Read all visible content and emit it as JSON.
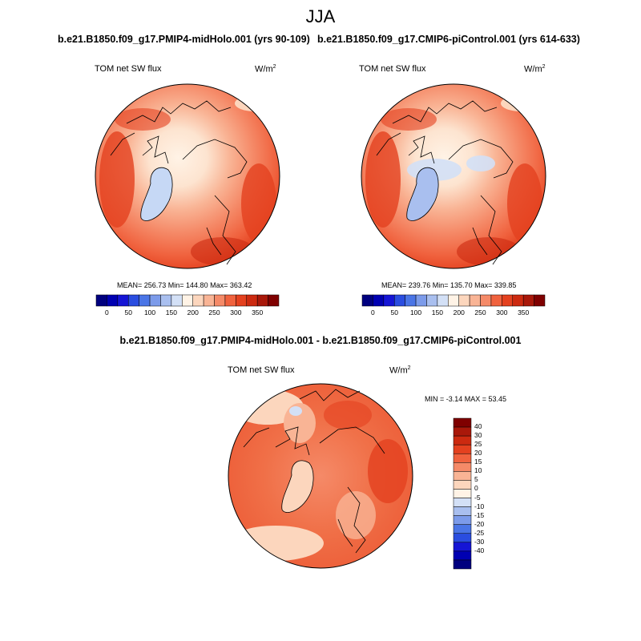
{
  "season": "JJA",
  "panel_left": {
    "title": "b.e21.B1850.f09_g17.PMIP4-midHolo.001 (yrs 90-109)",
    "variable": "TOM net SW flux",
    "units": "W/m",
    "units_sup": "2",
    "stats": "MEAN= 256.73  Min= 144.80  Max= 363.42"
  },
  "panel_right": {
    "title": "b.e21.B1850.f09_g17.CMIP6-piControl.001 (yrs 614-633)",
    "variable": "TOM net SW flux",
    "units": "W/m",
    "units_sup": "2",
    "stats": "MEAN= 239.76  Min= 135.70  Max= 339.85"
  },
  "panel_diff": {
    "title": "b.e21.B1850.f09_g17.PMIP4-midHolo.001 - b.e21.B1850.f09_g17.CMIP6-piControl.001",
    "variable": "TOM net SW flux",
    "units": "W/m",
    "units_sup": "2",
    "stats": "MIN =  -3.14 MAX =  53.45"
  },
  "abs_colorbar": {
    "colors": [
      "#00007f",
      "#0000b2",
      "#1515d5",
      "#2a4de0",
      "#4a75e6",
      "#7c9bea",
      "#a9bfef",
      "#d3e0f6",
      "#fff3e6",
      "#fcd6bd",
      "#f9b495",
      "#f58a68",
      "#f0623e",
      "#e4411f",
      "#cc2a10",
      "#a9180a",
      "#7f0000"
    ],
    "labels": [
      "0",
      "50",
      "100",
      "150",
      "200",
      "250",
      "300",
      "350"
    ]
  },
  "diff_colorbar": {
    "colors": [
      "#7f0000",
      "#a9180a",
      "#cc2a10",
      "#e4411f",
      "#f0623e",
      "#f58a68",
      "#f9b495",
      "#fcd6bd",
      "#fff3e6",
      "#d3e0f6",
      "#a9bfef",
      "#7c9bea",
      "#4a75e6",
      "#2a4de0",
      "#1515d5",
      "#0000b2",
      "#00007f"
    ],
    "labels": [
      "40",
      "30",
      "25",
      "20",
      "15",
      "10",
      "5",
      "0",
      "-5",
      "-10",
      "-15",
      "-20",
      "-25",
      "-30",
      "-40"
    ]
  }
}
